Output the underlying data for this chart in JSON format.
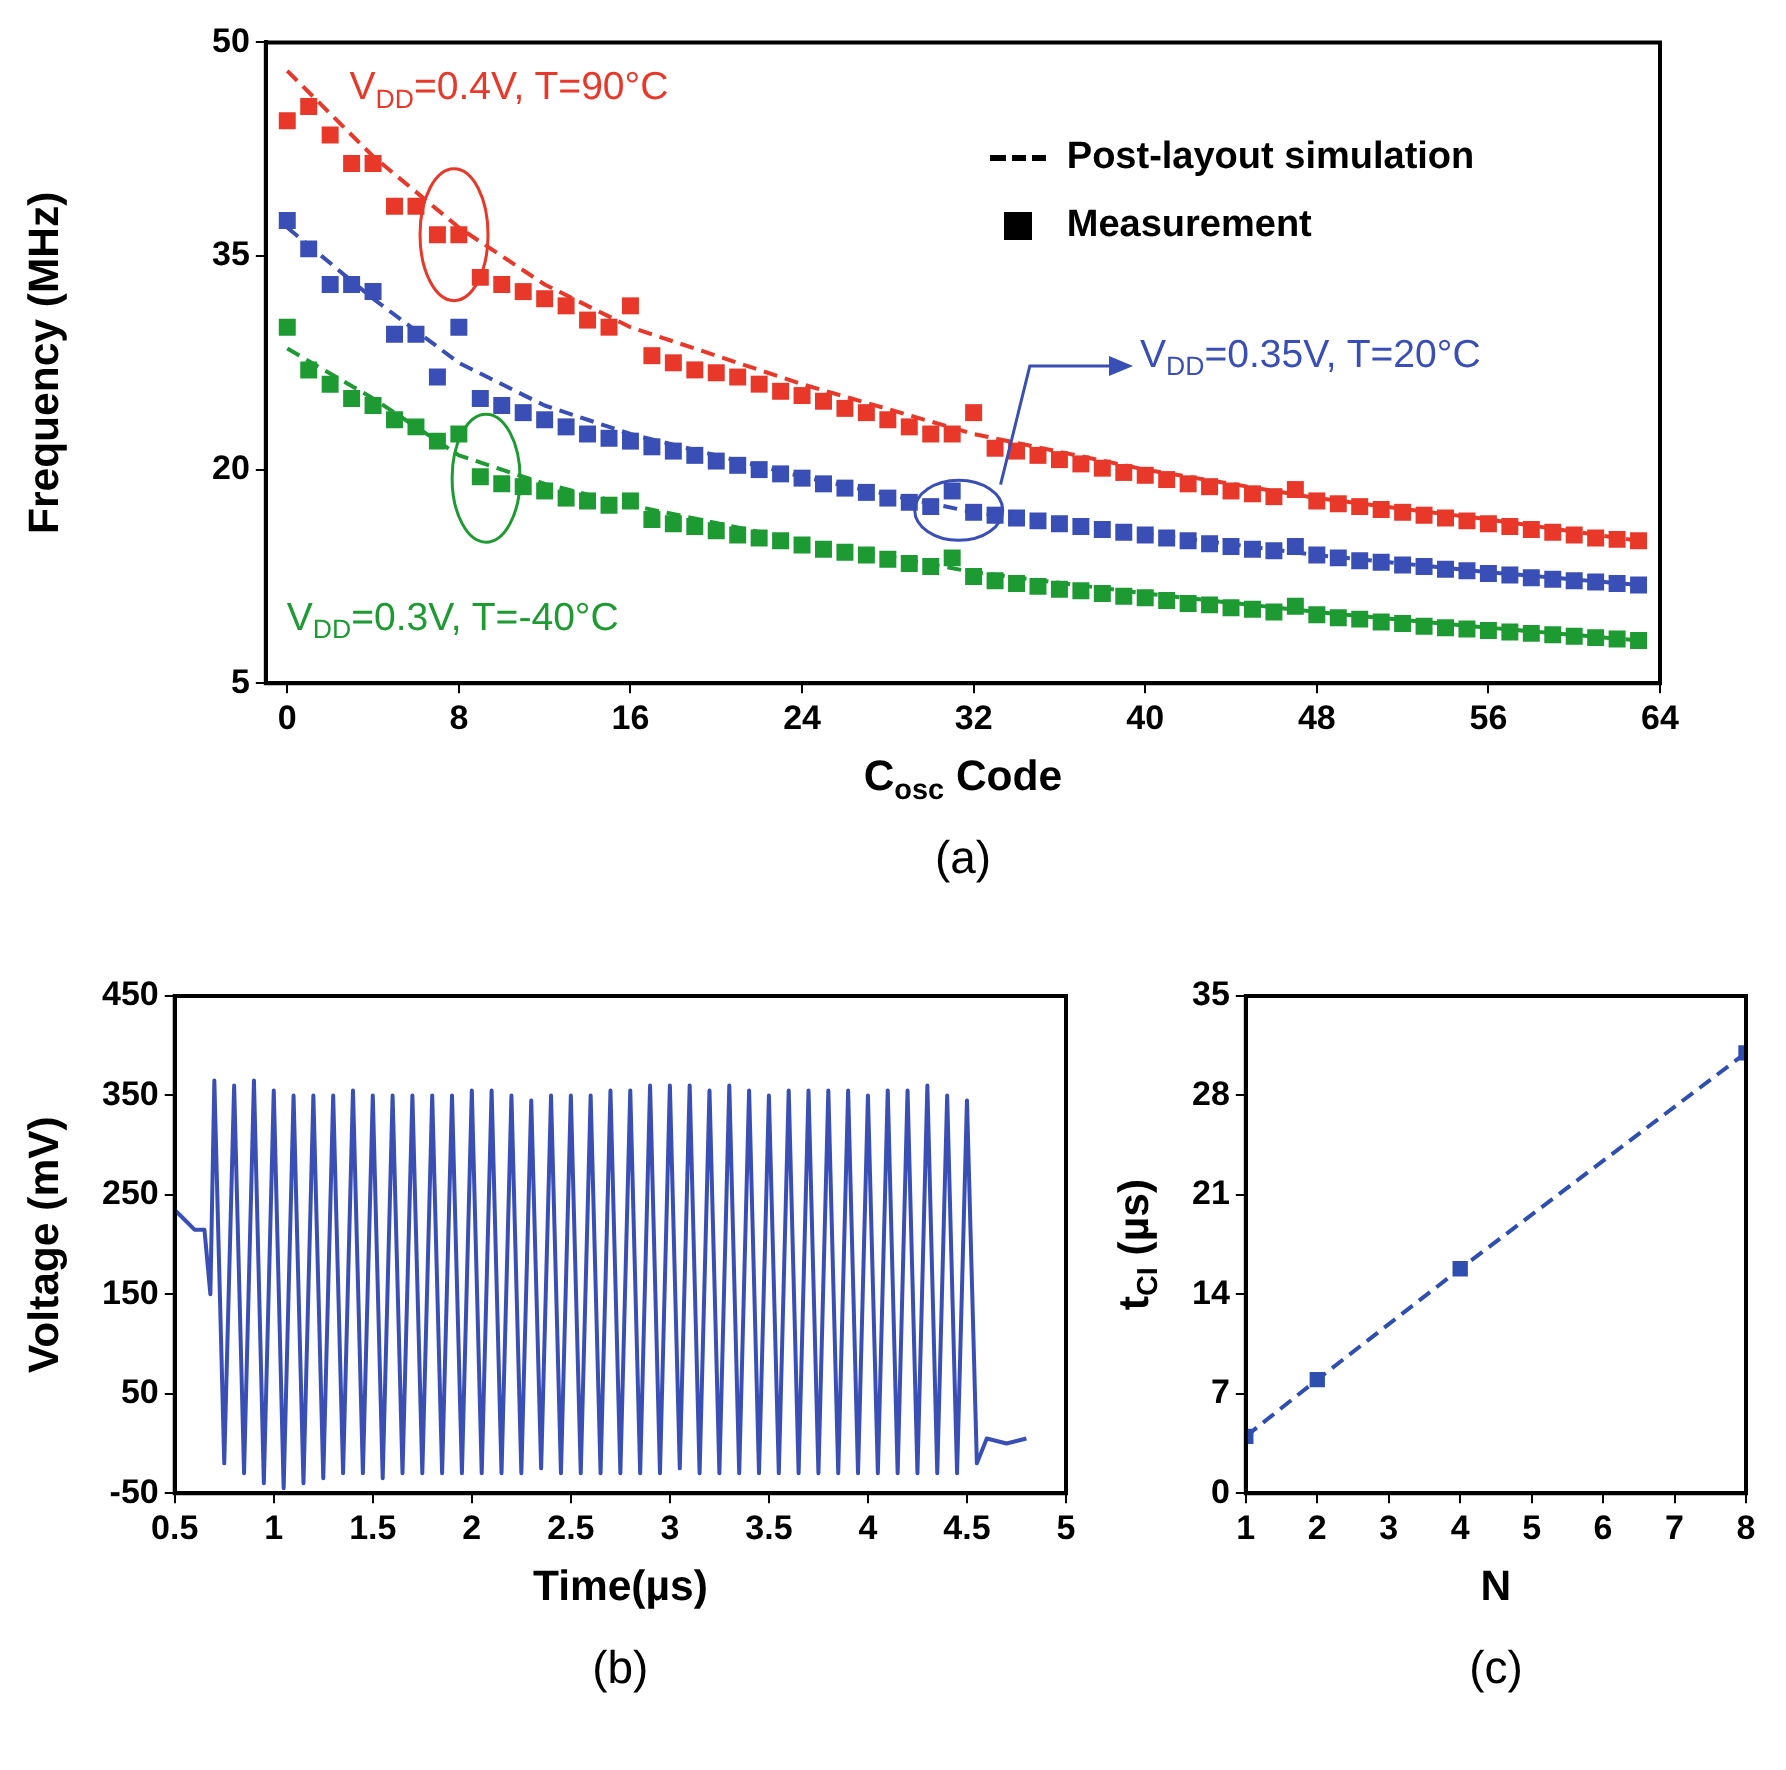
{
  "chart_data": [
    {
      "type": "line",
      "title": "(a)",
      "xlabel": "C$_{osc}$ Code",
      "ylabel": "Frequency (MHz)",
      "xlim": [
        -1,
        64
      ],
      "xticks": [
        0,
        8,
        16,
        24,
        32,
        40,
        48,
        56,
        64
      ],
      "ylim": [
        5,
        50
      ],
      "yticks": [
        5,
        20,
        35,
        50
      ],
      "annotations": [
        "Post-layout simulation",
        "Measurement"
      ],
      "x": [
        0,
        1,
        2,
        3,
        4,
        5,
        6,
        7,
        8,
        9,
        10,
        11,
        12,
        13,
        14,
        15,
        16,
        17,
        18,
        19,
        20,
        21,
        22,
        23,
        24,
        25,
        26,
        27,
        28,
        29,
        30,
        31,
        32,
        33,
        34,
        35,
        36,
        37,
        38,
        39,
        40,
        41,
        42,
        43,
        44,
        45,
        46,
        47,
        48,
        49,
        50,
        51,
        52,
        53,
        54,
        55,
        56,
        57,
        58,
        59,
        60,
        61,
        62,
        63
      ],
      "series": [
        {
          "name": "V$_{DD}$=0.4V, T=90°C",
          "type": "scatter",
          "marker": "square",
          "color": "#e8382a",
          "values": [
            44.5,
            45.5,
            43.5,
            41.5,
            41.5,
            38.5,
            38.5,
            36.5,
            36.5,
            33.5,
            33,
            32.5,
            32,
            31.5,
            30.5,
            30,
            31.5,
            28,
            27.5,
            27,
            26.8,
            26.5,
            26,
            25.5,
            25.2,
            24.8,
            24.3,
            24,
            23.5,
            23,
            22.5,
            22.5,
            24,
            21.5,
            21.3,
            21,
            20.7,
            20.4,
            20.1,
            19.8,
            19.6,
            19.3,
            19,
            18.8,
            18.5,
            18.3,
            18.1,
            18.6,
            17.8,
            17.6,
            17.4,
            17.2,
            17,
            16.8,
            16.6,
            16.4,
            16.2,
            16,
            15.8,
            15.6,
            15.4,
            15.2,
            15.1,
            15
          ]
        },
        {
          "name": "V$_{DD}$=0.35V, T=20°C",
          "type": "scatter",
          "marker": "square",
          "color": "#3a4fb5",
          "values": [
            37.5,
            35.5,
            33,
            33,
            32.5,
            29.5,
            29.5,
            26.5,
            30,
            25,
            24.5,
            24,
            23.5,
            23,
            22.5,
            22.2,
            22,
            21.6,
            21.3,
            21,
            20.6,
            20.3,
            20,
            19.7,
            19.4,
            19,
            18.7,
            18.4,
            18,
            17.7,
            17.4,
            18.5,
            17,
            16.8,
            16.6,
            16.4,
            16.2,
            16,
            15.8,
            15.6,
            15.4,
            15.2,
            15,
            14.8,
            14.6,
            14.4,
            14.3,
            14.6,
            14,
            13.8,
            13.6,
            13.5,
            13.3,
            13.2,
            13,
            12.9,
            12.7,
            12.6,
            12.4,
            12.3,
            12.2,
            12.1,
            12,
            11.9
          ]
        },
        {
          "name": "V$_{DD}$=0.3V, T=-40°C",
          "type": "scatter",
          "marker": "square",
          "color": "#1e9a33",
          "values": [
            30,
            27,
            26,
            25,
            24.5,
            23.5,
            23,
            22,
            22.5,
            19.5,
            19,
            18.8,
            18.5,
            18,
            17.8,
            17.5,
            17.8,
            16.5,
            16.2,
            16,
            15.7,
            15.4,
            15.2,
            15,
            14.7,
            14.4,
            14.2,
            14,
            13.7,
            13.4,
            13.2,
            13.8,
            12.5,
            12.2,
            12,
            11.8,
            11.6,
            11.5,
            11.3,
            11.1,
            11,
            10.8,
            10.6,
            10.5,
            10.3,
            10.2,
            10,
            10.4,
            9.8,
            9.6,
            9.5,
            9.3,
            9.2,
            9,
            8.9,
            8.8,
            8.7,
            8.6,
            8.5,
            8.4,
            8.3,
            8.2,
            8.1,
            8
          ]
        },
        {
          "type": "line",
          "line_style": "dashed",
          "color": "#e8382a",
          "x": [
            0,
            4,
            8,
            12,
            16,
            24,
            32,
            40,
            48,
            56,
            63
          ],
          "values": [
            48,
            42,
            37,
            33,
            30,
            26,
            22.5,
            20,
            18,
            16.5,
            15
          ]
        },
        {
          "type": "line",
          "line_style": "dashed",
          "color": "#3a4fb5",
          "x": [
            0,
            4,
            8,
            12,
            16,
            24,
            32,
            40,
            48,
            56,
            63
          ],
          "values": [
            37,
            32,
            27.5,
            24.5,
            22.5,
            19.5,
            17,
            15.5,
            14,
            12.8,
            11.9
          ]
        },
        {
          "type": "line",
          "line_style": "dashed",
          "color": "#1e9a33",
          "x": [
            0,
            4,
            8,
            12,
            16,
            24,
            32,
            40,
            48,
            56,
            63
          ],
          "values": [
            28.5,
            25,
            21,
            19,
            17.5,
            15,
            12.8,
            11.3,
            10,
            8.9,
            8
          ]
        }
      ]
    },
    {
      "type": "line",
      "title": "(b)",
      "xlabel": "Time(µs)",
      "ylabel": "Voltage (mV)",
      "xlim": [
        0.5,
        5
      ],
      "xticks": [
        0.5,
        1,
        1.5,
        2,
        2.5,
        3,
        3.5,
        4,
        4.5,
        5
      ],
      "ylim": [
        -50,
        450
      ],
      "yticks": [
        -50,
        50,
        150,
        250,
        350,
        450
      ],
      "color": "#3a4fb5",
      "x": [
        0.5,
        0.55,
        0.6,
        0.65,
        0.68,
        0.7,
        0.75,
        0.8,
        0.85,
        0.9,
        0.95,
        1,
        1.05,
        1.1,
        1.15,
        1.2,
        1.25,
        1.3,
        1.35,
        1.4,
        1.45,
        1.5,
        1.55,
        1.6,
        1.65,
        1.7,
        1.75,
        1.8,
        1.85,
        1.9,
        1.95,
        2,
        2.05,
        2.1,
        2.15,
        2.2,
        2.25,
        2.3,
        2.35,
        2.4,
        2.45,
        2.5,
        2.55,
        2.6,
        2.65,
        2.7,
        2.75,
        2.8,
        2.85,
        2.9,
        2.95,
        3,
        3.05,
        3.1,
        3.15,
        3.2,
        3.25,
        3.3,
        3.35,
        3.4,
        3.45,
        3.5,
        3.55,
        3.6,
        3.65,
        3.7,
        3.75,
        3.8,
        3.85,
        3.9,
        3.95,
        4,
        4.05,
        4.1,
        4.15,
        4.2,
        4.25,
        4.3,
        4.35,
        4.4,
        4.45,
        4.5,
        4.55,
        4.6,
        4.7,
        4.8
      ],
      "values": [
        235,
        225,
        215,
        215,
        150,
        365,
        -20,
        360,
        -30,
        365,
        -40,
        355,
        -45,
        350,
        -40,
        350,
        -35,
        350,
        -30,
        355,
        -30,
        350,
        -35,
        350,
        -30,
        350,
        -30,
        350,
        -30,
        350,
        -30,
        355,
        -30,
        355,
        -30,
        350,
        -30,
        345,
        -25,
        350,
        -30,
        350,
        -30,
        350,
        -30,
        355,
        -30,
        355,
        -30,
        360,
        -30,
        360,
        -25,
        360,
        -30,
        355,
        -30,
        360,
        -30,
        355,
        -30,
        350,
        -30,
        355,
        -30,
        355,
        -30,
        355,
        -30,
        355,
        -30,
        350,
        -30,
        355,
        -30,
        355,
        -30,
        360,
        -30,
        350,
        -30,
        345,
        -20,
        5,
        0,
        5
      ]
    },
    {
      "type": "line",
      "title": "(c)",
      "xlabel": "N",
      "ylabel": "t$_{CI}$ (µs)",
      "xlim": [
        1,
        8
      ],
      "xticks": [
        1,
        2,
        3,
        4,
        5,
        6,
        7,
        8
      ],
      "ylim": [
        0,
        35
      ],
      "yticks": [
        0,
        7,
        14,
        21,
        28,
        35
      ],
      "color": "#2f4fb0",
      "marker": "square",
      "line_style": "dashed",
      "x": [
        1,
        2,
        4,
        8
      ],
      "values": [
        4,
        8,
        15.8,
        31
      ]
    }
  ]
}
